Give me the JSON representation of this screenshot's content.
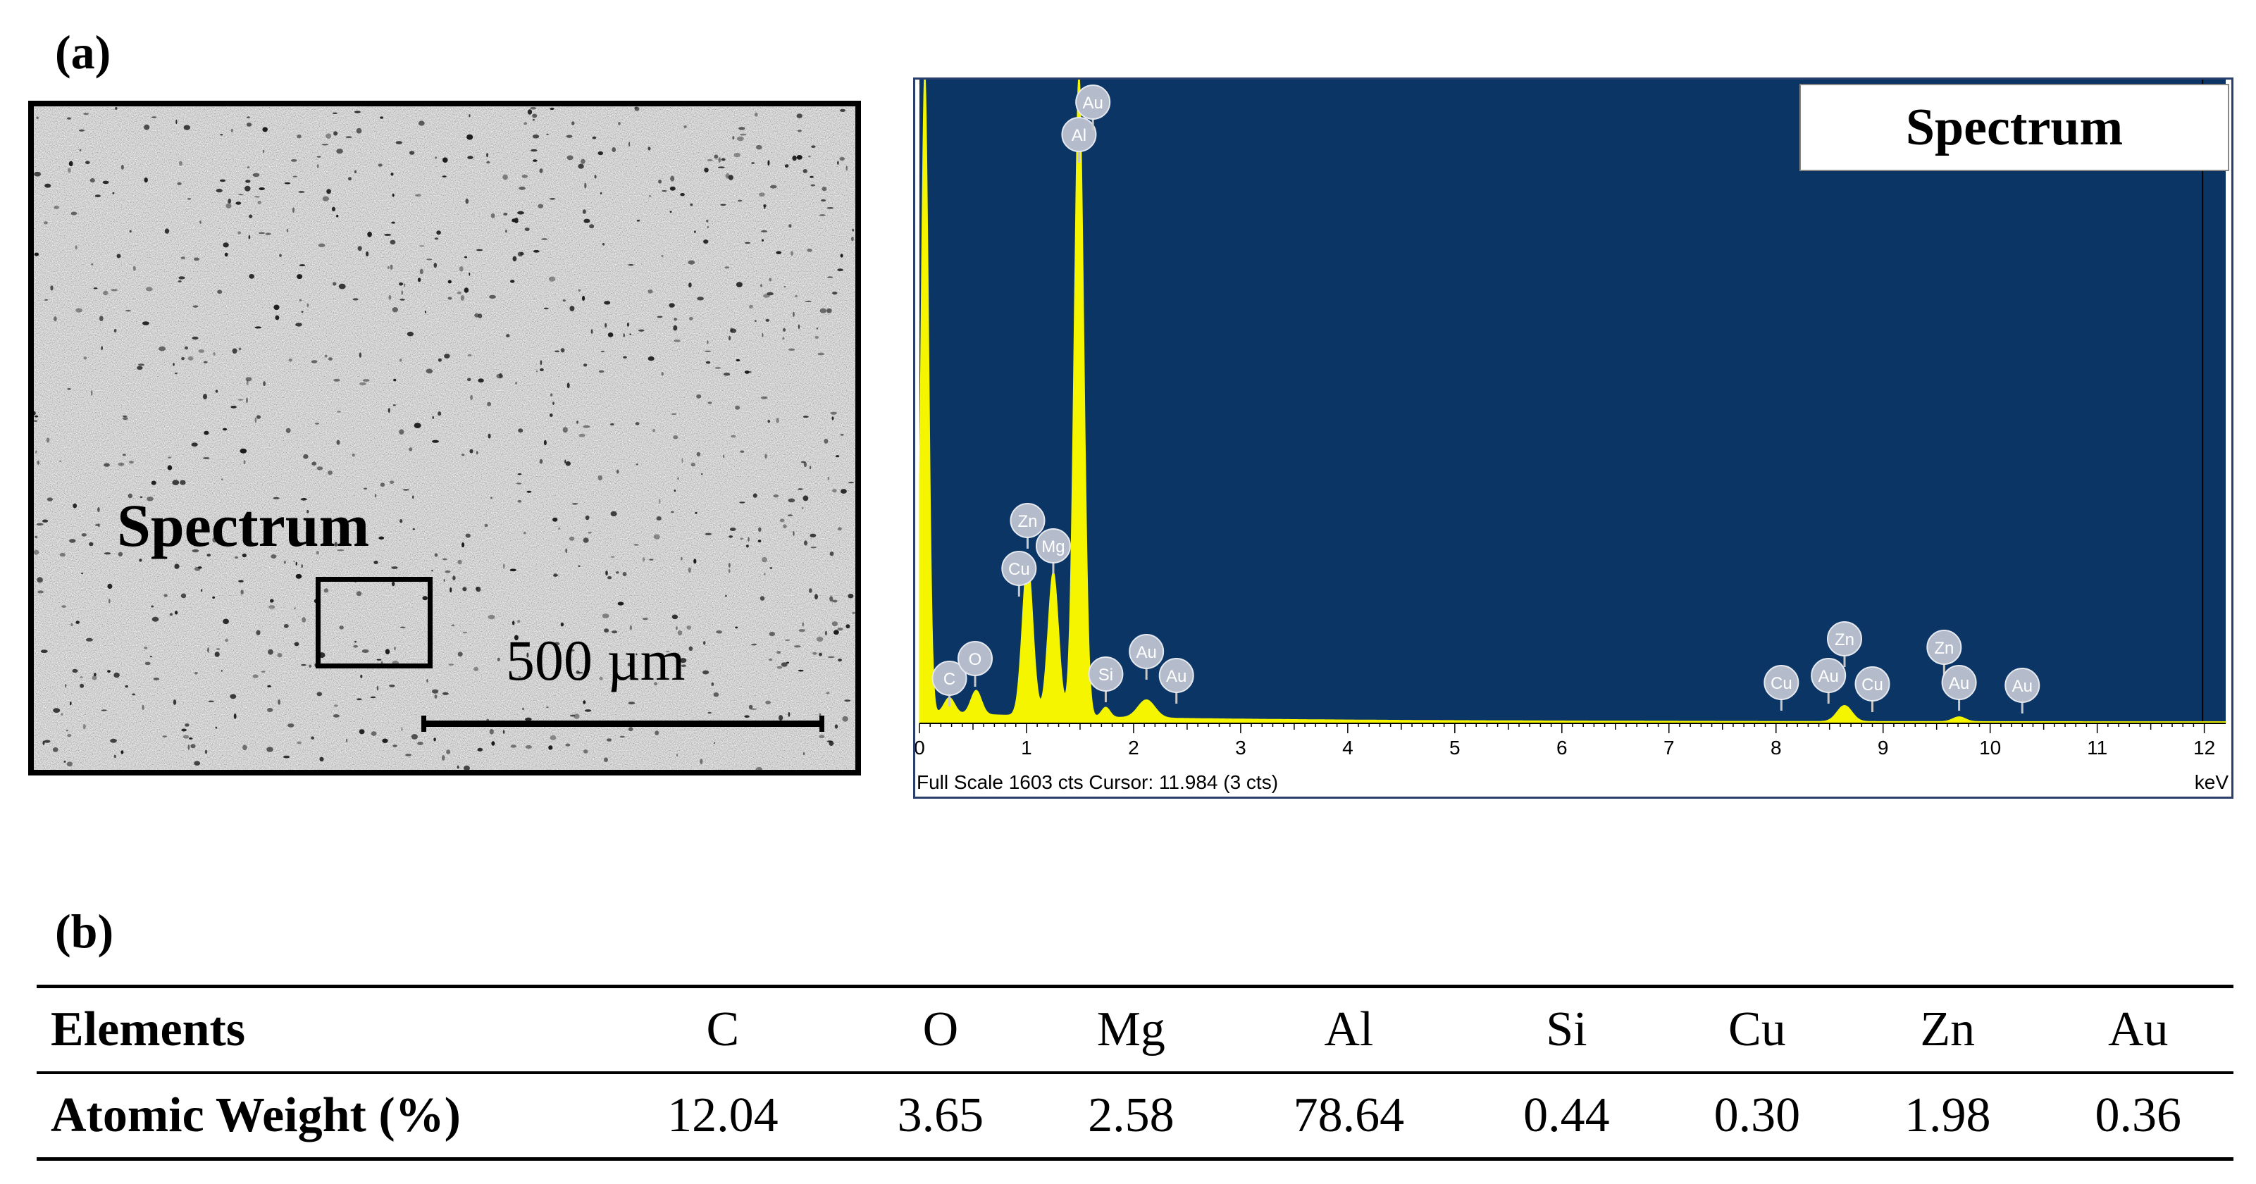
{
  "panel_a": {
    "label": "(a)",
    "micrograph": {
      "region_label": "Spectrum",
      "scale_bar_label": "500 µm"
    },
    "spectrum_legend": "Spectrum",
    "footer": "Full Scale 1603 cts Cursor: 11.984  (3 cts)",
    "unit": "keV"
  },
  "panel_b": {
    "label": "(b)",
    "table": {
      "header_label": "Elements",
      "row_label": "Atomic Weight (%)",
      "elements": [
        "C",
        "O",
        "Mg",
        "Al",
        "Si",
        "Cu",
        "Zn",
        "Au"
      ],
      "values": [
        "12.04",
        "3.65",
        "2.58",
        "78.64",
        "0.44",
        "0.30",
        "1.98",
        "0.36"
      ]
    }
  },
  "chart_data": {
    "type": "area",
    "title": "",
    "xlabel": "keV",
    "ylabel": "",
    "xlim": [
      0,
      12.2
    ],
    "ylim": [
      0,
      1603
    ],
    "xticks": [
      0,
      1,
      2,
      3,
      4,
      5,
      6,
      7,
      8,
      9,
      10,
      11,
      12
    ],
    "background_color": "#0a3565",
    "series_color": "#f5f500",
    "legend": "Spectrum",
    "peaks": [
      {
        "x": 0.05,
        "y": 1603
      },
      {
        "x": 0.28,
        "y": 40
      },
      {
        "x": 0.53,
        "y": 60
      },
      {
        "x": 1.01,
        "y": 390
      },
      {
        "x": 1.25,
        "y": 360
      },
      {
        "x": 1.49,
        "y": 1603
      },
      {
        "x": 1.74,
        "y": 25
      },
      {
        "x": 2.12,
        "y": 45
      },
      {
        "x": 8.64,
        "y": 40
      },
      {
        "x": 9.71,
        "y": 12
      }
    ],
    "peak_labels": [
      {
        "label": "C",
        "x": 0.28
      },
      {
        "label": "O",
        "x": 0.52
      },
      {
        "label": "Cu",
        "x": 0.93
      },
      {
        "label": "Zn",
        "x": 1.01
      },
      {
        "label": "Mg",
        "x": 1.25
      },
      {
        "label": "Al",
        "x": 1.49
      },
      {
        "label": "Au",
        "x": 1.62
      },
      {
        "label": "Si",
        "x": 1.74
      },
      {
        "label": "Au",
        "x": 2.12
      },
      {
        "label": "Au",
        "x": 2.4
      },
      {
        "label": "Cu",
        "x": 8.05
      },
      {
        "label": "Au",
        "x": 8.49
      },
      {
        "label": "Zn",
        "x": 8.64
      },
      {
        "label": "Cu",
        "x": 8.9
      },
      {
        "label": "Zn",
        "x": 9.57
      },
      {
        "label": "Au",
        "x": 9.71
      },
      {
        "label": "Au",
        "x": 10.3
      }
    ]
  }
}
